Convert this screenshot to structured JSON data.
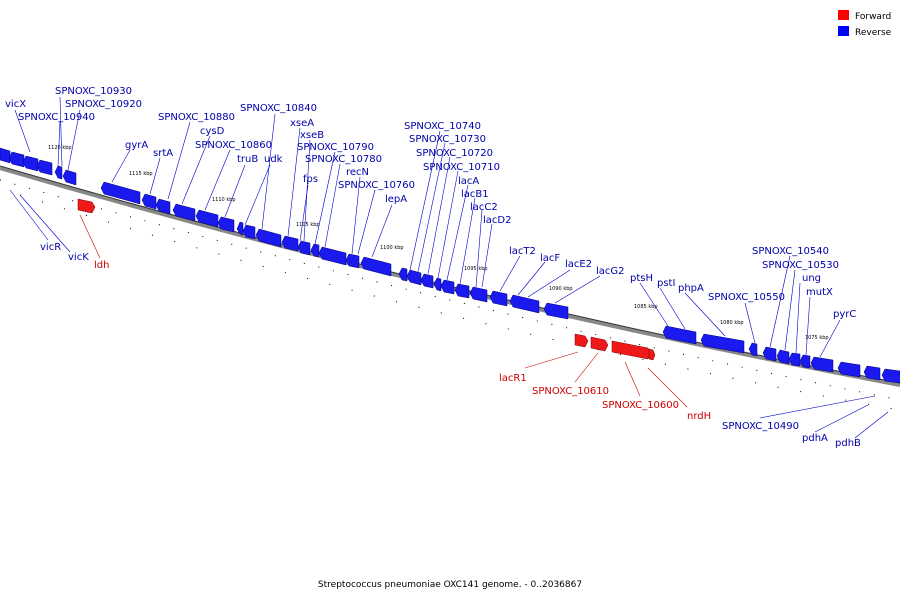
{
  "caption": "Streptococcus pneumoniae OXC141 genome. - 0..2036867",
  "legend": [
    {
      "label": "Forward",
      "color": "#ff0000"
    },
    {
      "label": "Reverse",
      "color": "#0000ff"
    }
  ],
  "ticks": [
    "1120 kbp",
    "1115 kbp",
    "1110 kbp",
    "1105 kbp",
    "1100 kbp",
    "1095 kbp",
    "1090 kbp",
    "1085 kbp",
    "1080 kbp",
    "1075 kbp"
  ],
  "reverse_labels": [
    "vicX",
    "SPNOXC_10930",
    "SPNOXC_10920",
    "SPNOXC_10940",
    "gyrA",
    "srtA",
    "SPNOXC_10880",
    "cysD",
    "SPNOXC_10860",
    "truB",
    "udk",
    "SPNOXC_10840",
    "xseA",
    "xseB",
    "SPNOXC_10790",
    "SPNOXC_10780",
    "fps",
    "recN",
    "SPNOXC_10760",
    "lepA",
    "SPNOXC_10740",
    "SPNOXC_10730",
    "SPNOXC_10720",
    "SPNOXC_10710",
    "lacA",
    "lacB1",
    "lacC2",
    "lacD2",
    "lacT2",
    "lacF",
    "lacE2",
    "lacG2",
    "ptsH",
    "pstI",
    "phpA",
    "SPNOXC_10550",
    "SPNOXC_10540",
    "SPNOXC_10530",
    "ung",
    "mutX",
    "pyrC",
    "vicR",
    "vicK",
    "SPNOXC_10490",
    "pdhA",
    "pdhB"
  ],
  "forward_labels": [
    "ldh",
    "lacR1",
    "SPNOXC_10610",
    "SPNOXC_10600",
    "nrdH"
  ]
}
